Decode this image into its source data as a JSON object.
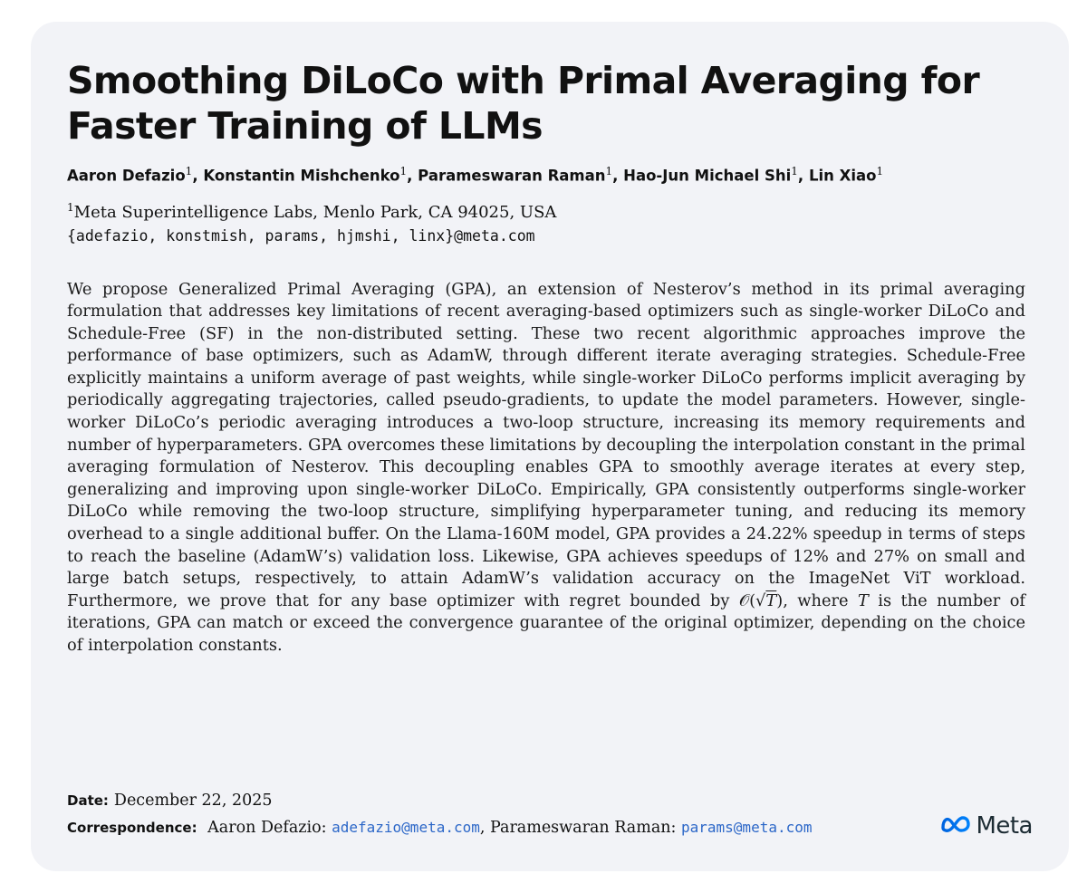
{
  "paper": {
    "title": "Smoothing DiLoCo with Primal Averaging for Faster Training of LLMs",
    "authors": [
      {
        "name": "Aaron Defazio",
        "aff": "1"
      },
      {
        "name": "Konstantin Mishchenko",
        "aff": "1"
      },
      {
        "name": "Parameswaran Raman",
        "aff": "1"
      },
      {
        "name": "Hao-Jun Michael Shi",
        "aff": "1"
      },
      {
        "name": "Lin Xiao",
        "aff": "1"
      }
    ],
    "affiliation_mark": "1",
    "affiliation": "Meta Superintelligence Labs, Menlo Park, CA 94025, USA",
    "emails": "{adefazio, konstmish, params, hjmshi, linx}@meta.com",
    "abstract": {
      "part1": "We propose Generalized Primal Averaging (GPA), an extension of Nesterov’s method in its primal averaging formulation that addresses key limitations of recent averaging-based optimizers such as single-worker DiLoCo and Schedule-Free (SF) in the non-distributed setting. These two recent algorithmic approaches improve the performance of base optimizers, such as AdamW, through different iterate averaging strategies. Schedule-Free explicitly maintains a uniform average of past weights, while single-worker DiLoCo performs implicit averaging by periodically aggregating trajectories, called pseudo-gradients, to update the model parameters. However, single-worker DiLoCo’s periodic averaging introduces a two-loop structure, increasing its memory requirements and number of hyperparameters. GPA overcomes these limitations by decoupling the interpolation constant in the primal averaging formulation of Nesterov. This decoupling enables GPA to smoothly average iterates at every step, generalizing and improving upon single-worker DiLoCo. Empirically, GPA consistently outperforms single-worker DiLoCo while removing the two-loop structure, simplifying hyperparameter tuning, and reducing its memory overhead to a single additional buffer. On the Llama-160M model, GPA provides a 24.22% speedup in terms of steps to reach the baseline (AdamW’s) validation loss. Likewise, GPA achieves speedups of 12% and 27% on small and large batch setups, respectively, to attain AdamW’s validation accuracy on the ImageNet ViT workload. Furthermore, we prove that for any base optimizer with regret bounded by ",
      "math_big_o": "𝒪(",
      "math_sqrt_sign": "√",
      "math_T": "T",
      "math_close": ")",
      "part2": ", where ",
      "math_T2": "T",
      "part3": " is the number of iterations, GPA can match or exceed the convergence guarantee of the original optimizer, depending on the choice of interpolation constants."
    },
    "date_label": "Date:",
    "date": "December 22, 2025",
    "correspondence_label": "Correspondence:",
    "corr_name_1": "Aaron Defazio:",
    "corr_email_1": "adefazio@meta.com",
    "corr_name_2": "Parameswaran Raman:",
    "corr_email_2": "params@meta.com",
    "logo_text": "Meta",
    "logo_icon": "meta-infinity-icon",
    "link_color": "#2c67c8",
    "card_color": "#f2f3f7"
  }
}
